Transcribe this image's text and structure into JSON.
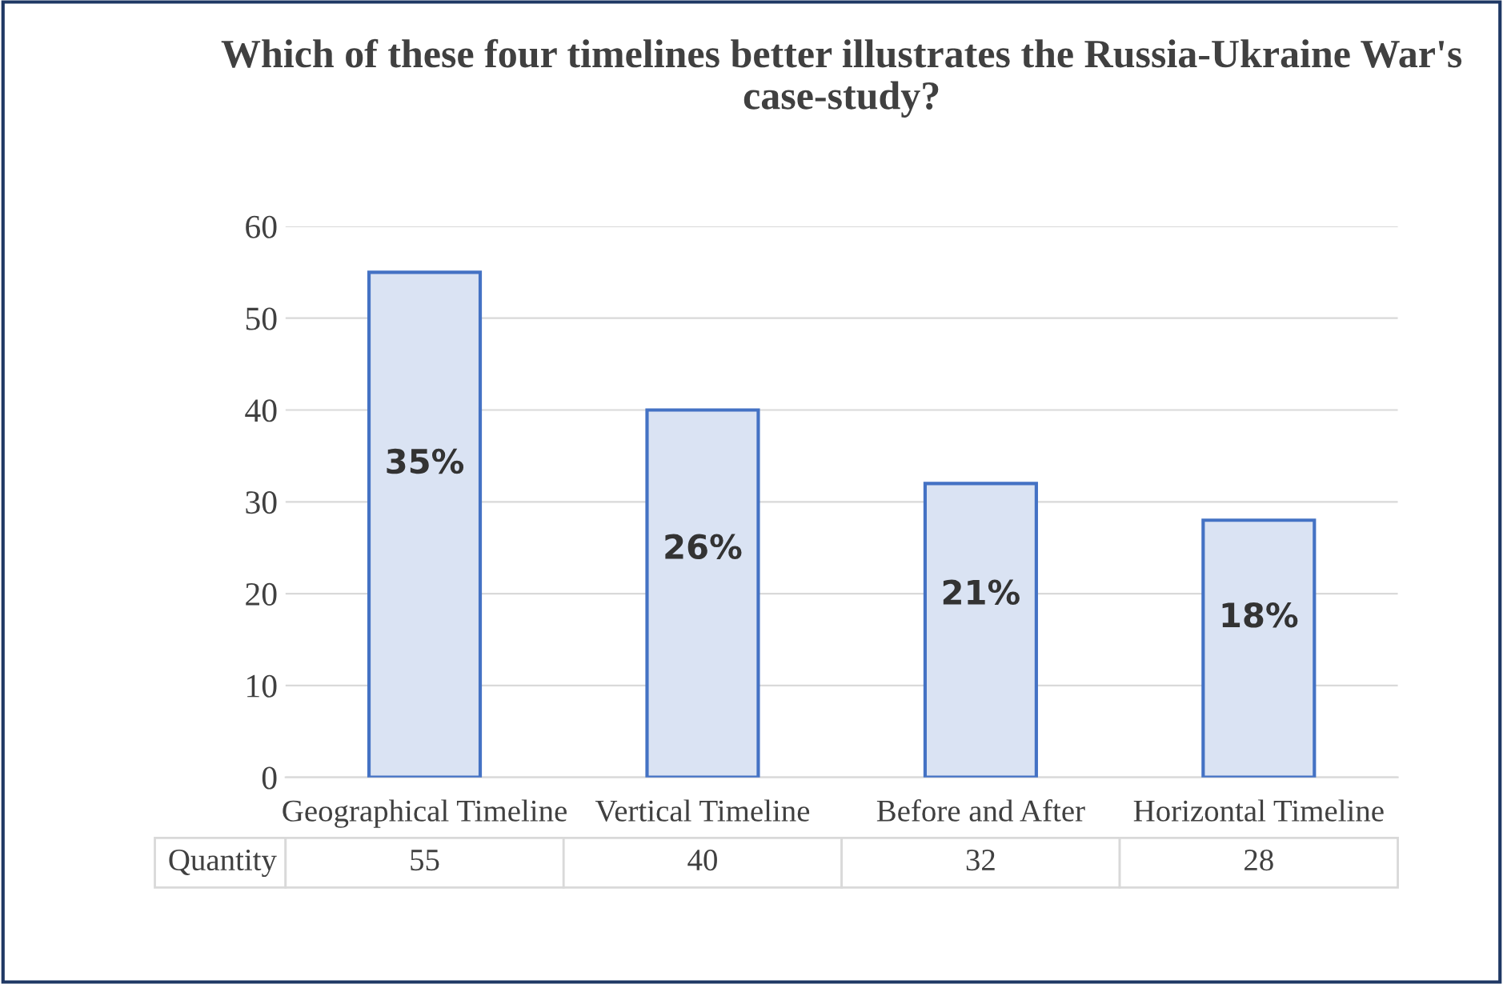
{
  "chart_data": {
    "type": "bar",
    "title": "Which of these four timelines better illustrates the Russia-Ukraine War's case-study?",
    "categories": [
      "Geographical Timeline",
      "Vertical Timeline",
      "Before and After",
      "Horizontal Timeline"
    ],
    "series": [
      {
        "name": "Quantity",
        "color": "#dae3f3",
        "values": [
          55,
          40,
          32,
          28
        ],
        "value_labels": [
          "55",
          "40",
          "32",
          "28"
        ]
      }
    ],
    "annotations": [
      "35%",
      "26%",
      "21%",
      "18%"
    ],
    "ylim": [
      0,
      60
    ],
    "yticks": [
      0,
      10,
      20,
      30,
      40,
      50,
      60
    ],
    "grid": "y",
    "legend": false
  }
}
